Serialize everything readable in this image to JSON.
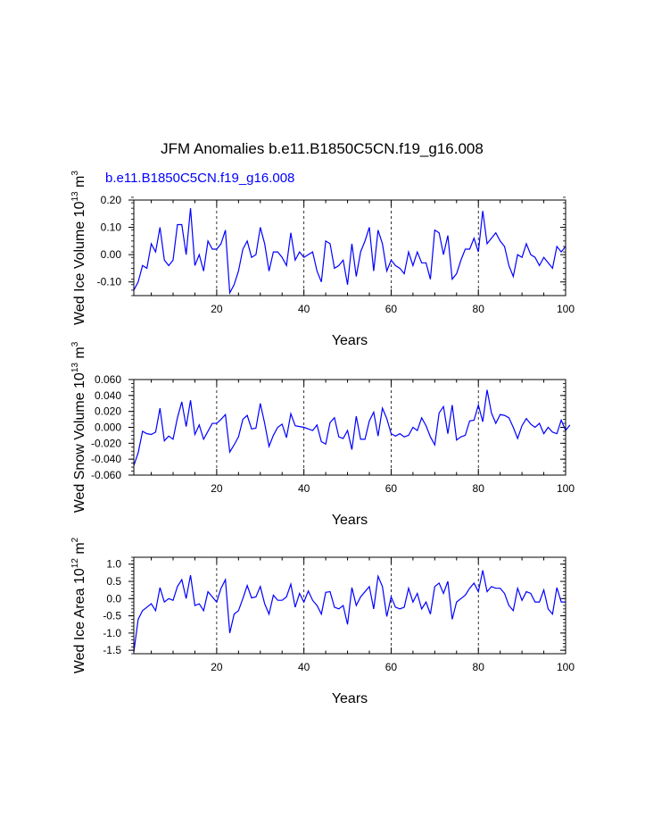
{
  "figure": {
    "title": "JFM Anomalies b.e11.B1850C5CN.f19_g16.008",
    "case_label": "b.e11.B1850C5CN.f19_g16.008",
    "line_color": "#0000ff"
  },
  "chart_data": [
    {
      "type": "line",
      "name": "ice-volume",
      "ylabel_main": "Wed Ice Volume 10",
      "ylabel_exp": "13",
      "ylabel_unit": "m",
      "ylabel_unit_exp": "3",
      "xlabel": "Years",
      "xlim": [
        1,
        100
      ],
      "ylim": [
        -0.15,
        0.2
      ],
      "xticks": [
        20,
        40,
        60,
        80,
        100
      ],
      "yticks": [
        -0.1,
        0.0,
        0.1,
        0.2
      ],
      "yticklabels": [
        "-0.10",
        "0.00",
        "0.10",
        "0.20"
      ],
      "yminor_step": 0.02,
      "vlines": [
        20,
        40,
        60,
        80
      ],
      "series": [
        {
          "name": "b.e11.B1850C5CN.f19_g16.008",
          "x_start": 1,
          "values": [
            -0.13,
            -0.1,
            -0.04,
            -0.05,
            0.04,
            0.01,
            0.1,
            -0.02,
            -0.04,
            -0.02,
            0.11,
            0.11,
            0.0,
            0.17,
            -0.04,
            0.0,
            -0.06,
            0.05,
            0.02,
            0.02,
            0.04,
            0.09,
            -0.14,
            -0.11,
            -0.06,
            0.02,
            0.05,
            -0.01,
            0.0,
            0.1,
            0.04,
            -0.06,
            0.01,
            0.01,
            -0.01,
            -0.04,
            0.08,
            -0.02,
            0.01,
            -0.01,
            0.0,
            0.01,
            -0.06,
            -0.1,
            0.05,
            0.04,
            -0.05,
            -0.04,
            -0.02,
            -0.11,
            0.04,
            -0.08,
            0.01,
            0.05,
            0.1,
            -0.06,
            0.09,
            0.04,
            -0.06,
            -0.02,
            -0.04,
            -0.05,
            -0.07,
            0.01,
            -0.04,
            0.01,
            -0.03,
            -0.03,
            -0.09,
            0.09,
            0.08,
            0.0,
            0.07,
            -0.09,
            -0.07,
            -0.02,
            0.02,
            0.02,
            0.06,
            0.01,
            0.16,
            0.04,
            0.06,
            0.08,
            0.05,
            0.03,
            -0.04,
            -0.08,
            0.0,
            -0.01,
            0.04,
            0.0,
            -0.01,
            -0.04,
            -0.01,
            -0.03,
            -0.05,
            0.03,
            0.01,
            0.03
          ]
        }
      ]
    },
    {
      "type": "line",
      "name": "snow-volume",
      "ylabel_main": "Wed Snow Volume 10",
      "ylabel_exp": "13",
      "ylabel_unit": "m",
      "ylabel_unit_exp": "3",
      "xlabel": "Years",
      "xlim": [
        1,
        100
      ],
      "ylim": [
        -0.06,
        0.06
      ],
      "xticks": [
        20,
        40,
        60,
        80,
        100
      ],
      "yticks": [
        -0.06,
        -0.04,
        -0.02,
        0.0,
        0.02,
        0.04,
        0.06
      ],
      "yticklabels": [
        "-0.060",
        "-0.040",
        "-0.020",
        "0.000",
        "0.020",
        "0.040",
        "0.060"
      ],
      "yminor_step": 0.005,
      "vlines": [
        20,
        40,
        60,
        80
      ],
      "series": [
        {
          "name": "b.e11.B1850C5CN.f19_g16.008",
          "x_start": 1,
          "values": [
            -0.048,
            -0.032,
            -0.005,
            -0.008,
            -0.009,
            -0.006,
            0.024,
            -0.017,
            -0.011,
            -0.015,
            0.012,
            0.032,
            0.001,
            0.034,
            -0.009,
            0.003,
            -0.015,
            -0.005,
            0.005,
            0.005,
            0.01,
            0.016,
            -0.031,
            -0.022,
            -0.012,
            0.01,
            0.015,
            -0.002,
            -0.001,
            0.03,
            0.005,
            -0.024,
            -0.01,
            0.0,
            0.004,
            -0.013,
            0.017,
            0.002,
            0.001,
            0.0,
            -0.002,
            -0.004,
            0.003,
            -0.018,
            -0.021,
            0.006,
            0.012,
            -0.012,
            -0.014,
            -0.004,
            -0.028,
            0.014,
            -0.015,
            -0.015,
            0.008,
            0.019,
            -0.011,
            0.024,
            0.011,
            -0.008,
            -0.011,
            -0.008,
            -0.012,
            -0.01,
            0.0,
            -0.004,
            0.012,
            0.002,
            -0.012,
            -0.022,
            0.018,
            0.026,
            -0.008,
            0.028,
            -0.016,
            -0.012,
            -0.01,
            0.008,
            0.009,
            0.028,
            0.007,
            0.047,
            0.018,
            0.005,
            0.016,
            0.015,
            0.012,
            0.0,
            -0.014,
            0.002,
            0.011,
            0.004,
            0.0,
            0.005,
            -0.008,
            0.0,
            -0.006,
            -0.008,
            0.009,
            -0.004,
            0.003
          ]
        }
      ]
    },
    {
      "type": "line",
      "name": "ice-area",
      "ylabel_main": "Wed Ice Area 10",
      "ylabel_exp": "12",
      "ylabel_unit": "m",
      "ylabel_unit_exp": "2",
      "xlabel": "Years",
      "xlim": [
        1,
        100
      ],
      "ylim": [
        -1.6,
        1.2
      ],
      "xticks": [
        20,
        40,
        60,
        80,
        100
      ],
      "yticks": [
        -1.5,
        -1.0,
        -0.5,
        0.0,
        0.5,
        1.0
      ],
      "yticklabels": [
        "-1.5",
        "-1.0",
        "-0.5",
        "0.0",
        "0.5",
        "1.0"
      ],
      "yminor_step": 0.1,
      "vlines": [
        20,
        40,
        60,
        80
      ],
      "series": [
        {
          "name": "b.e11.B1850C5CN.f19_g16.008",
          "x_start": 1,
          "values": [
            -1.55,
            -0.6,
            -0.35,
            -0.25,
            -0.15,
            -0.35,
            0.32,
            -0.1,
            0.0,
            -0.05,
            0.35,
            0.55,
            0.0,
            0.68,
            -0.2,
            -0.15,
            -0.35,
            0.2,
            0.05,
            -0.1,
            0.3,
            0.55,
            -1.0,
            -0.45,
            -0.35,
            0.0,
            0.38,
            0.02,
            0.05,
            0.35,
            -0.15,
            -0.45,
            0.1,
            -0.05,
            -0.05,
            0.05,
            0.42,
            -0.25,
            0.15,
            -0.1,
            0.22,
            -0.05,
            -0.2,
            -0.45,
            0.18,
            0.2,
            -0.25,
            -0.3,
            -0.2,
            -0.75,
            0.32,
            -0.2,
            0.05,
            0.2,
            0.35,
            -0.3,
            0.65,
            0.35,
            -0.52,
            0.05,
            -0.25,
            -0.3,
            -0.25,
            0.3,
            -0.1,
            0.15,
            -0.3,
            -0.1,
            -0.45,
            0.35,
            0.45,
            0.15,
            0.5,
            -0.6,
            -0.1,
            0.0,
            0.1,
            0.3,
            0.45,
            0.2,
            0.82,
            0.2,
            0.35,
            0.3,
            0.3,
            0.15,
            -0.2,
            -0.35,
            0.3,
            -0.05,
            0.2,
            0.15,
            -0.1,
            -0.1,
            0.25,
            -0.3,
            -0.45,
            0.32,
            -0.1,
            -0.1
          ]
        }
      ]
    }
  ]
}
